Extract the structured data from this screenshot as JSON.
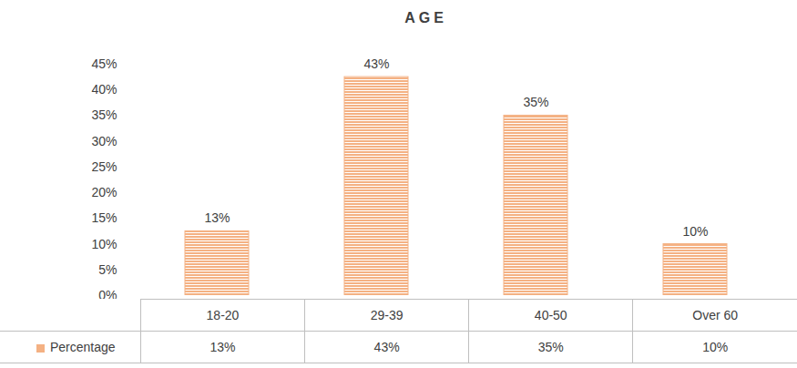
{
  "chart_data": {
    "type": "bar",
    "title": "AGE",
    "categories": [
      "18-20",
      "29-39",
      "40-50",
      "Over 60"
    ],
    "series": [
      {
        "name": "Percentage",
        "color": "#f4b183",
        "values": [
          12.5,
          42.5,
          35,
          10
        ],
        "value_labels": [
          "13%",
          "43%",
          "35%",
          "10%"
        ]
      }
    ],
    "ylim": [
      0,
      45
    ],
    "yticks": [
      {
        "value": 0,
        "label": "0%"
      },
      {
        "value": 5,
        "label": "5%"
      },
      {
        "value": 10,
        "label": "10%"
      },
      {
        "value": 15,
        "label": "15%"
      },
      {
        "value": 20,
        "label": "20%"
      },
      {
        "value": 25,
        "label": "25%"
      },
      {
        "value": 30,
        "label": "30%"
      },
      {
        "value": 35,
        "label": "35%"
      },
      {
        "value": 40,
        "label": "40%"
      },
      {
        "value": 45,
        "label": "45%"
      }
    ],
    "grid": false,
    "data_labels": true
  }
}
